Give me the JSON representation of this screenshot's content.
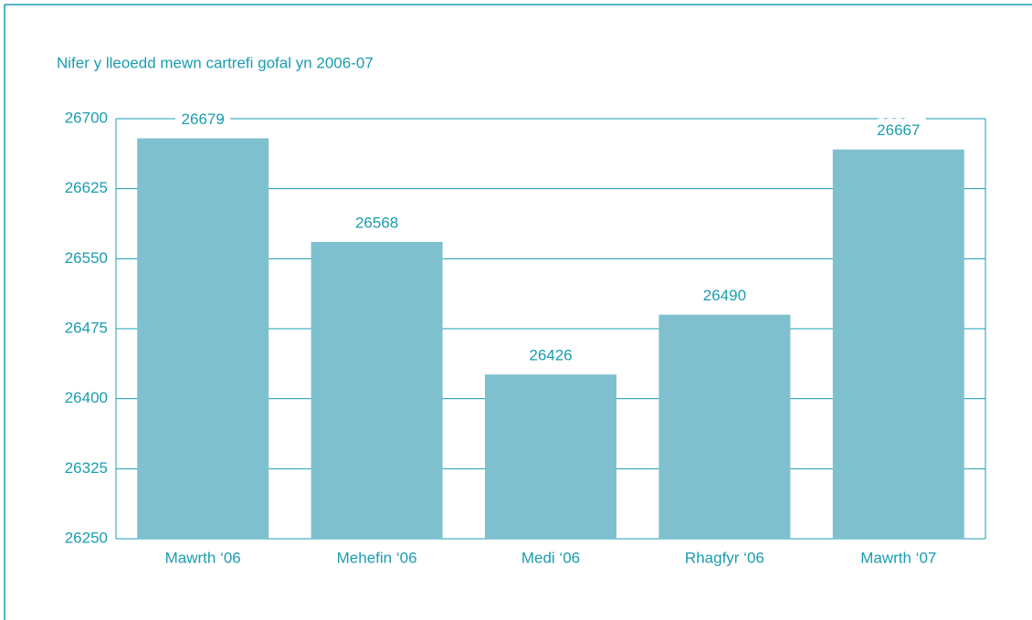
{
  "chart_data": {
    "type": "bar",
    "title": "Nifer y lleoedd mewn cartrefi gofal yn 2006-07",
    "categories": [
      "Mawrth ‘06",
      "Mehefin ‘06",
      "Medi ‘06",
      "Rhagfyr ‘06",
      "Mawrth ‘07"
    ],
    "values": [
      26679,
      26568,
      26426,
      26490,
      26667
    ],
    "color": "#7fc0cf",
    "ylim": [
      26250,
      26700
    ],
    "yticks": [
      26250,
      26325,
      26400,
      26475,
      26550,
      26625,
      26700
    ],
    "grid": true
  }
}
